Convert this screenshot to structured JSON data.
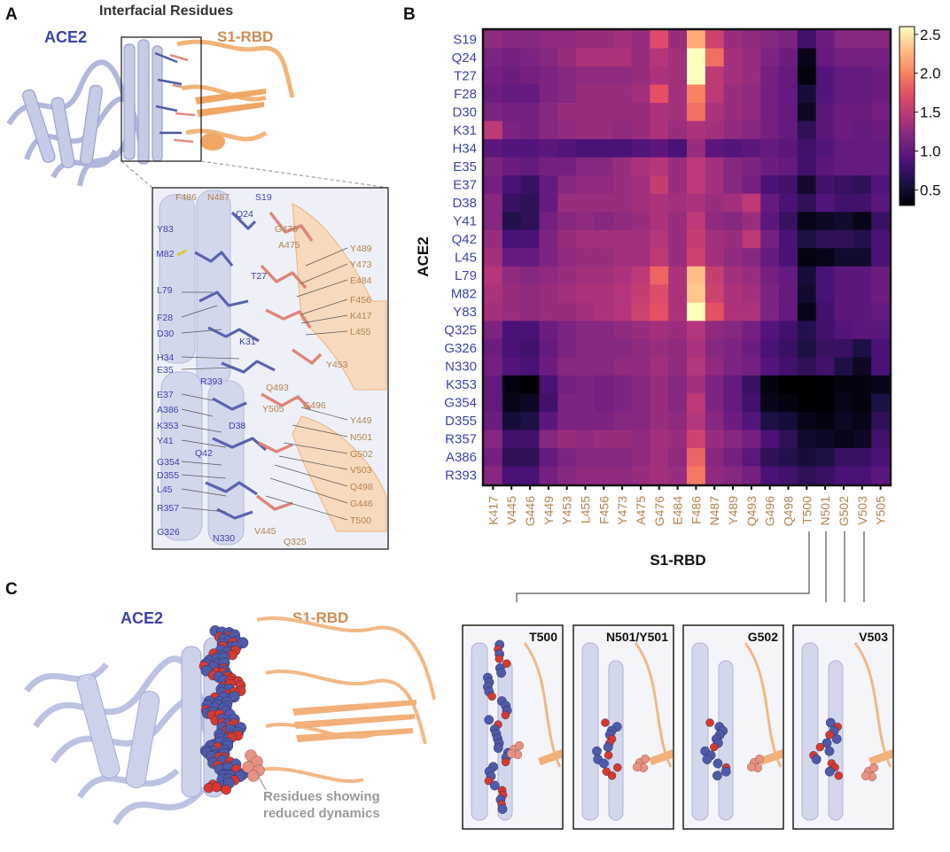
{
  "panels": {
    "a": {
      "letter": "A",
      "title": "Interfacial Residues",
      "ace2_label": "ACE2",
      "rbd_label": "S1-RBD",
      "ace2_residue_labels": [
        "Y83",
        "M82",
        "L79",
        "F28",
        "D30",
        "H34",
        "E35",
        "R393",
        "E37",
        "A386",
        "K353",
        "Y41",
        "G354",
        "D355",
        "L45",
        "R357",
        "G326",
        "N330",
        "Q42",
        "D38",
        "K31",
        "T27",
        "Q24",
        "S19"
      ],
      "rbd_residue_labels": [
        "F486",
        "N487",
        "G476",
        "A475",
        "Y489",
        "Y473",
        "E484",
        "F456",
        "K417",
        "L455",
        "Y453",
        "Q493",
        "G496",
        "Y505",
        "Y449",
        "N501",
        "G502",
        "V503",
        "Q498",
        "G446",
        "T500",
        "V445",
        "Q325"
      ]
    },
    "b": {
      "letter": "B",
      "colorbar_ticks": [
        "2.5",
        "2.0",
        "1.5",
        "1.0",
        "0.5"
      ]
    },
    "c": {
      "letter": "C",
      "ace2_label": "ACE2",
      "rbd_label": "S1-RBD",
      "annotation_line1": "Residues showing",
      "annotation_line2": "reduced dynamics",
      "insets": [
        "T500",
        "N501/Y501",
        "G502",
        "V503"
      ]
    }
  },
  "chart_data": {
    "type": "heatmap",
    "title": "",
    "xlabel": "S1-RBD",
    "ylabel": "ACE2",
    "x_labels": [
      "K417",
      "V445",
      "G446",
      "Y449",
      "Y453",
      "L455",
      "F456",
      "Y473",
      "A475",
      "G476",
      "E484",
      "F486",
      "N487",
      "Y489",
      "Q493",
      "G496",
      "Q498",
      "T500",
      "N501",
      "G502",
      "V503",
      "Y505"
    ],
    "y_labels": [
      "S19",
      "Q24",
      "T27",
      "F28",
      "D30",
      "K31",
      "H34",
      "E35",
      "E37",
      "D38",
      "Y41",
      "Q42",
      "L45",
      "L79",
      "M82",
      "Y83",
      "Q325",
      "G326",
      "N330",
      "K353",
      "G354",
      "D355",
      "R357",
      "A386",
      "R393"
    ],
    "color_range": [
      0.3,
      2.6
    ],
    "colorbar_ticks": [
      2.5,
      2.0,
      1.5,
      1.0,
      0.5
    ],
    "values": [
      [
        1.25,
        1.2,
        1.2,
        1.25,
        1.25,
        1.3,
        1.3,
        1.35,
        1.3,
        1.7,
        1.3,
        2.2,
        1.6,
        1.3,
        1.25,
        1.2,
        1.15,
        0.8,
        1.05,
        1.2,
        1.2,
        1.2
      ],
      [
        1.15,
        1.1,
        1.15,
        1.2,
        1.3,
        1.4,
        1.4,
        1.4,
        1.3,
        1.45,
        1.35,
        2.6,
        1.9,
        1.35,
        1.3,
        1.15,
        1.05,
        0.4,
        1.0,
        1.1,
        1.1,
        1.1
      ],
      [
        1.1,
        1.05,
        1.1,
        1.15,
        1.2,
        1.25,
        1.25,
        1.25,
        1.3,
        1.4,
        1.35,
        2.6,
        1.5,
        1.35,
        1.3,
        1.1,
        1.0,
        0.35,
        0.9,
        1.0,
        1.0,
        1.05
      ],
      [
        1.05,
        1.0,
        1.0,
        1.15,
        1.2,
        1.3,
        1.3,
        1.3,
        1.35,
        1.75,
        1.35,
        2.0,
        1.5,
        1.3,
        1.25,
        1.1,
        1.0,
        0.55,
        0.9,
        1.0,
        1.0,
        1.05
      ],
      [
        1.15,
        1.1,
        1.1,
        1.2,
        1.3,
        1.3,
        1.3,
        1.3,
        1.3,
        1.4,
        1.35,
        1.9,
        1.4,
        1.3,
        1.25,
        1.1,
        1.0,
        0.45,
        0.95,
        1.05,
        1.05,
        1.1
      ],
      [
        1.5,
        1.15,
        1.1,
        1.2,
        1.25,
        1.3,
        1.3,
        1.25,
        1.3,
        1.4,
        1.3,
        1.4,
        1.35,
        1.25,
        1.2,
        1.1,
        1.0,
        0.7,
        0.95,
        1.05,
        1.0,
        1.05
      ],
      [
        0.95,
        0.9,
        0.9,
        0.95,
        0.9,
        0.85,
        0.85,
        0.85,
        0.9,
        0.95,
        0.85,
        1.3,
        0.95,
        0.9,
        0.95,
        1.0,
        0.95,
        0.8,
        0.9,
        1.0,
        1.0,
        1.0
      ],
      [
        1.15,
        1.05,
        1.0,
        1.1,
        1.1,
        1.2,
        1.2,
        1.3,
        1.4,
        1.45,
        1.3,
        1.5,
        1.35,
        1.2,
        1.15,
        1.05,
        1.0,
        0.8,
        0.95,
        1.0,
        1.0,
        1.0
      ],
      [
        1.1,
        0.85,
        0.75,
        1.0,
        1.2,
        1.25,
        1.25,
        1.3,
        1.35,
        1.55,
        1.3,
        1.5,
        1.35,
        1.2,
        1.1,
        0.85,
        0.8,
        0.5,
        0.8,
        0.75,
        0.7,
        0.9
      ],
      [
        1.2,
        0.75,
        0.7,
        1.0,
        1.3,
        1.3,
        1.3,
        1.3,
        1.35,
        1.4,
        1.35,
        1.4,
        1.3,
        1.35,
        1.5,
        1.0,
        0.85,
        0.7,
        0.9,
        0.8,
        0.8,
        0.95
      ],
      [
        1.2,
        0.65,
        0.7,
        1.1,
        1.2,
        1.25,
        1.2,
        1.25,
        1.3,
        1.4,
        1.3,
        1.5,
        1.25,
        1.2,
        1.3,
        0.95,
        0.75,
        0.4,
        0.45,
        0.5,
        0.4,
        0.75
      ],
      [
        1.3,
        0.85,
        0.85,
        1.15,
        1.3,
        1.35,
        1.35,
        1.35,
        1.35,
        1.45,
        1.3,
        1.55,
        1.35,
        1.3,
        1.5,
        1.1,
        0.85,
        0.6,
        0.7,
        0.7,
        0.65,
        0.85
      ],
      [
        1.35,
        1.0,
        1.0,
        1.15,
        1.25,
        1.3,
        1.3,
        1.35,
        1.35,
        1.5,
        1.3,
        1.6,
        1.35,
        1.25,
        1.2,
        1.0,
        0.85,
        0.35,
        0.4,
        0.5,
        0.5,
        0.85
      ],
      [
        1.45,
        1.25,
        1.2,
        1.25,
        1.3,
        1.35,
        1.35,
        1.4,
        1.5,
        1.85,
        1.4,
        2.3,
        1.55,
        1.35,
        1.3,
        1.1,
        1.0,
        0.55,
        0.85,
        0.95,
        0.95,
        1.05
      ],
      [
        1.4,
        1.3,
        1.25,
        1.3,
        1.35,
        1.4,
        1.4,
        1.45,
        1.55,
        1.7,
        1.4,
        2.35,
        1.6,
        1.4,
        1.35,
        1.15,
        1.0,
        0.5,
        0.85,
        0.95,
        0.95,
        1.05
      ],
      [
        1.35,
        1.3,
        1.25,
        1.3,
        1.3,
        1.35,
        1.4,
        1.45,
        1.6,
        1.75,
        1.4,
        2.6,
        1.75,
        1.4,
        1.4,
        1.15,
        1.0,
        0.4,
        0.8,
        0.95,
        0.95,
        1.0
      ],
      [
        1.15,
        0.85,
        0.85,
        1.05,
        1.15,
        1.2,
        1.2,
        1.25,
        1.3,
        1.35,
        1.3,
        1.45,
        1.25,
        1.2,
        1.1,
        0.9,
        0.8,
        0.65,
        0.8,
        0.9,
        0.95,
        0.95
      ],
      [
        1.05,
        0.85,
        0.8,
        1.0,
        1.15,
        1.2,
        1.2,
        1.2,
        1.25,
        1.3,
        1.25,
        1.4,
        1.2,
        1.15,
        1.05,
        0.85,
        0.75,
        0.6,
        0.75,
        0.75,
        0.6,
        0.85
      ],
      [
        1.1,
        0.9,
        0.85,
        1.05,
        1.2,
        1.2,
        1.2,
        1.25,
        1.25,
        1.35,
        1.25,
        1.45,
        1.25,
        1.15,
        1.1,
        0.9,
        0.8,
        0.7,
        0.8,
        0.6,
        0.45,
        0.85
      ],
      [
        1.0,
        0.35,
        0.3,
        0.85,
        1.1,
        1.15,
        1.1,
        1.15,
        1.2,
        1.3,
        1.2,
        1.35,
        1.15,
        1.0,
        0.75,
        0.35,
        0.3,
        0.3,
        0.3,
        0.35,
        0.35,
        0.4
      ],
      [
        1.0,
        0.4,
        0.45,
        0.8,
        1.15,
        1.15,
        1.1,
        1.15,
        1.2,
        1.3,
        1.2,
        1.5,
        1.15,
        1.0,
        0.8,
        0.4,
        0.35,
        0.3,
        0.3,
        0.4,
        0.35,
        0.6
      ],
      [
        1.05,
        0.55,
        0.6,
        0.95,
        1.15,
        1.15,
        1.15,
        1.2,
        1.2,
        1.3,
        1.25,
        1.45,
        1.2,
        1.05,
        0.9,
        0.6,
        0.55,
        0.4,
        0.35,
        0.45,
        0.4,
        0.7
      ],
      [
        1.2,
        0.8,
        0.8,
        1.2,
        1.3,
        1.25,
        1.3,
        1.3,
        1.25,
        1.35,
        1.3,
        1.6,
        1.3,
        1.2,
        1.1,
        0.85,
        0.7,
        0.5,
        0.45,
        0.4,
        0.45,
        0.8
      ],
      [
        1.1,
        0.7,
        0.7,
        1.0,
        1.15,
        1.2,
        1.2,
        1.2,
        1.25,
        1.35,
        1.25,
        1.85,
        1.2,
        1.1,
        0.95,
        0.7,
        0.65,
        0.55,
        0.6,
        0.75,
        0.75,
        0.85
      ],
      [
        1.2,
        0.85,
        0.85,
        1.1,
        1.2,
        1.25,
        1.25,
        1.25,
        1.3,
        1.35,
        1.3,
        1.95,
        1.25,
        1.2,
        1.1,
        0.85,
        0.8,
        0.7,
        0.75,
        0.85,
        0.85,
        0.95
      ]
    ]
  },
  "colors": {
    "ace2": "#3a3f9a",
    "rbd": "#c7844b",
    "ace2_light": "#c6cbe6",
    "rbd_light": "#f2c08f",
    "blue_sphere": "#4f5aa8",
    "red_sphere": "#d63a2f",
    "salmon_sphere": "#e79384",
    "annotation_gray": "#9a9a9a",
    "label_blue": "#3b44a6",
    "label_brown": "#b3834e"
  }
}
